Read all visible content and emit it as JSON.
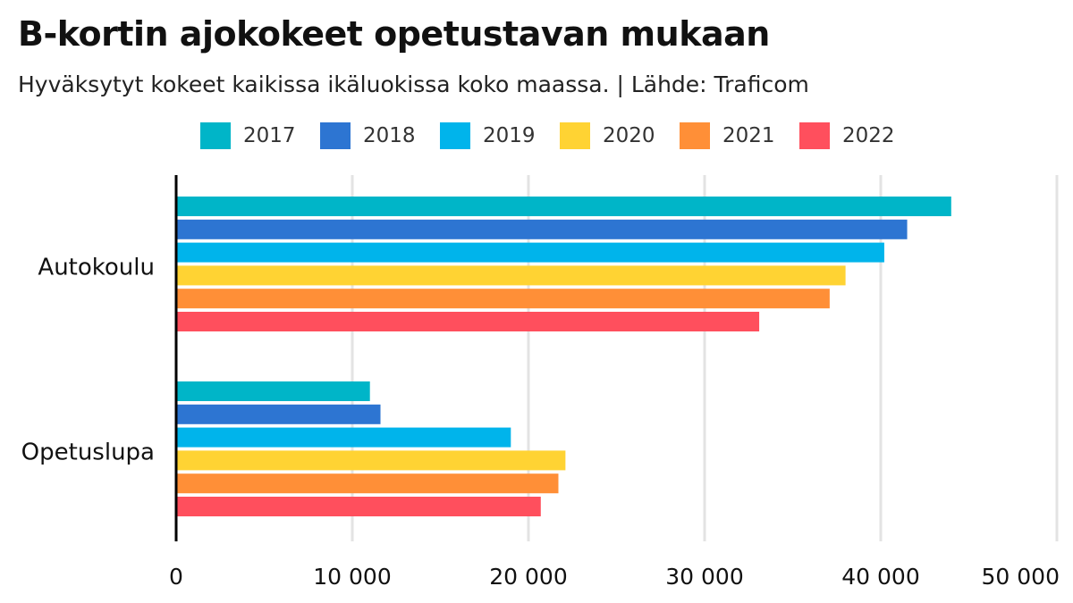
{
  "title": "B-kortin ajokokeet opetustavan mukaan",
  "subtitle": "Hyväksytyt kokeet kaikissa ikäluokissa koko maassa. | Lähde: Traficom",
  "chart_data": {
    "type": "bar",
    "orientation": "horizontal",
    "categories": [
      "Autokoulu",
      "Opetuslupa"
    ],
    "series": [
      {
        "name": "2017",
        "color": "#00b5c8",
        "values": [
          44000,
          11000
        ]
      },
      {
        "name": "2018",
        "color": "#2d75d2",
        "values": [
          41500,
          11600
        ]
      },
      {
        "name": "2019",
        "color": "#00b4eb",
        "values": [
          40200,
          19000
        ]
      },
      {
        "name": "2020",
        "color": "#ffd333",
        "values": [
          38000,
          22100
        ]
      },
      {
        "name": "2021",
        "color": "#ff8f37",
        "values": [
          37100,
          21700
        ]
      },
      {
        "name": "2022",
        "color": "#ff4f5d",
        "values": [
          33100,
          20700
        ]
      }
    ],
    "xlim": [
      0,
      50000
    ],
    "xticks": [
      0,
      10000,
      20000,
      30000,
      40000,
      50000
    ],
    "xtick_labels": [
      "0",
      "10 000",
      "20 000",
      "30 000",
      "40 000",
      "50 000"
    ],
    "grid": "vertical",
    "legend_position": "top"
  }
}
